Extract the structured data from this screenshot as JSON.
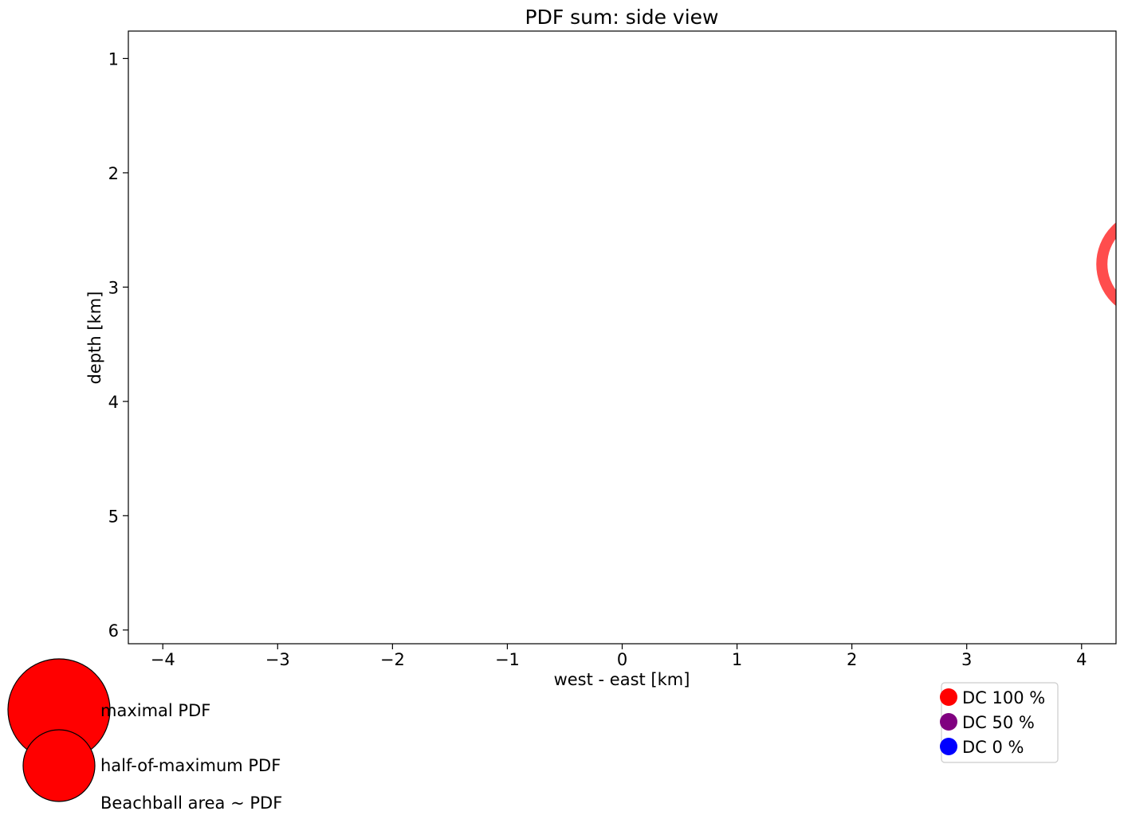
{
  "chart_data": {
    "type": "scatter",
    "title": "PDF sum: side view",
    "xlabel": "west - east [km]",
    "ylabel": "depth [km]",
    "xlim": [
      -4.3,
      4.3
    ],
    "ylim": [
      6.12,
      0.76
    ],
    "y_inverted": true,
    "xticks": [
      -4,
      -3,
      -2,
      -1,
      0,
      1,
      2,
      3,
      4
    ],
    "xtick_labels": [
      "−4",
      "−3",
      "−2",
      "−1",
      "0",
      "1",
      "2",
      "3",
      "4"
    ],
    "yticks": [
      1,
      2,
      3,
      4,
      5,
      6
    ],
    "ytick_labels": [
      "1",
      "2",
      "3",
      "4",
      "5",
      "6"
    ],
    "grid": false,
    "points": [
      {
        "x": 4.6,
        "y": 2.8,
        "color": "#ff4d4d",
        "style": "ring"
      }
    ]
  },
  "size_legend": {
    "items": [
      {
        "label": "maximal PDF",
        "color": "#ff0000"
      },
      {
        "label": "half-of-maximum PDF",
        "color": "#ff0000"
      }
    ],
    "note": "Beachball area ~ PDF"
  },
  "color_legend": {
    "placement": "lower-right",
    "items": [
      {
        "label": "DC 100 %",
        "color": "#ff0000"
      },
      {
        "label": "DC 50 %",
        "color": "#800080"
      },
      {
        "label": "DC 0 %",
        "color": "#0000ff"
      }
    ]
  }
}
